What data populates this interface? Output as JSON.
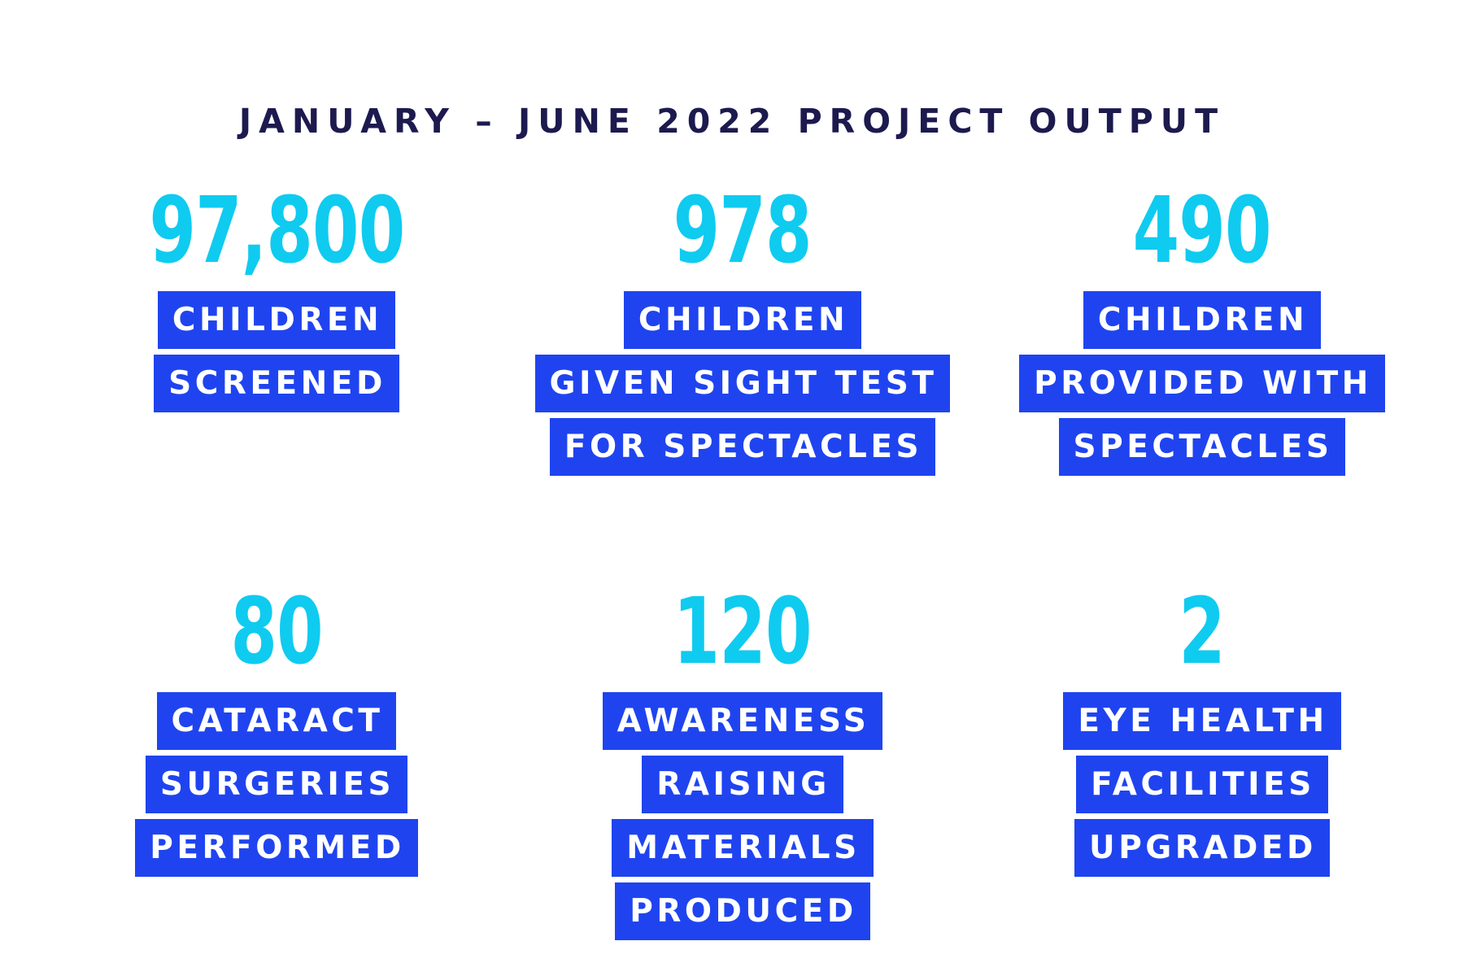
{
  "title": "JANUARY – JUNE 2022 PROJECT OUTPUT",
  "colors": {
    "title": "#1c1a4e",
    "number": "#0fcbf0",
    "label_background": "#1f44ef",
    "label_text": "#ffffff",
    "background": "#ffffff"
  },
  "stats": [
    {
      "value": "97,800",
      "lines": [
        "CHILDREN",
        "SCREENED"
      ]
    },
    {
      "value": "978",
      "lines": [
        "CHILDREN",
        "GIVEN SIGHT TEST",
        "FOR SPECTACLES"
      ]
    },
    {
      "value": "490",
      "lines": [
        "CHILDREN",
        "PROVIDED WITH",
        "SPECTACLES"
      ]
    },
    {
      "value": "80",
      "lines": [
        "CATARACT",
        "SURGERIES",
        "PERFORMED"
      ]
    },
    {
      "value": "120",
      "lines": [
        "AWARENESS",
        "RAISING",
        "MATERIALS",
        "PRODUCED"
      ]
    },
    {
      "value": "2",
      "lines": [
        "EYE HEALTH",
        "FACILITIES",
        "UPGRADED"
      ]
    }
  ]
}
